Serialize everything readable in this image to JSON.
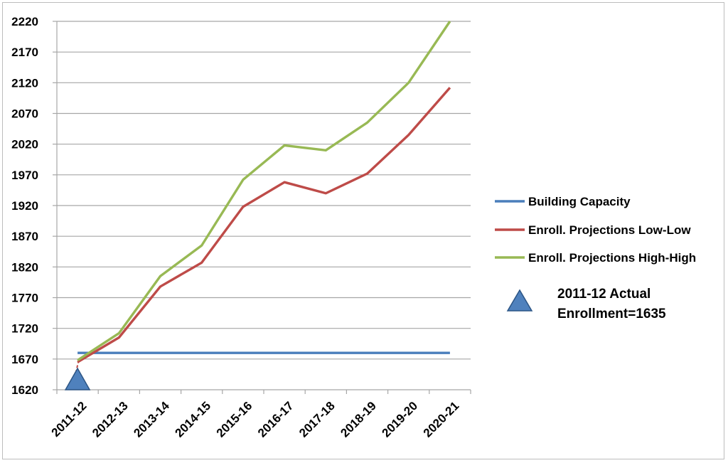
{
  "chart_data": {
    "type": "line",
    "title": "",
    "xlabel": "",
    "ylabel": "",
    "categories": [
      "2011-12",
      "2012-13",
      "2013-14",
      "2014-15",
      "2015-16",
      "2016-17",
      "2017-18",
      "2018-19",
      "2019-20",
      "2020-21"
    ],
    "y_ticks": [
      "1620",
      "1670",
      "1720",
      "1770",
      "1820",
      "1870",
      "1920",
      "1970",
      "2020",
      "2070",
      "2120",
      "2170",
      "2220"
    ],
    "ylim": [
      1620,
      2220
    ],
    "grid": true,
    "legend_position": "right",
    "series": [
      {
        "name": "Building Capacity",
        "color": "#4a7ebb",
        "values": [
          1680,
          1680,
          1680,
          1680,
          1680,
          1680,
          1680,
          1680,
          1680,
          1680
        ]
      },
      {
        "name": "Enroll. Projections Low-Low",
        "color": "#be4b48",
        "values": [
          1665,
          1705,
          1788,
          1827,
          1918,
          1958,
          1940,
          1972,
          2035,
          2112
        ]
      },
      {
        "name": "Enroll. Projections High-High",
        "color": "#98b954",
        "values": [
          1668,
          1712,
          1805,
          1855,
          1962,
          2018,
          2010,
          2055,
          2120,
          2220
        ]
      }
    ],
    "annotation": {
      "line1": "2011-12 Actual",
      "line2": "Enrollment=1635",
      "marker": "triangle",
      "marker_color": "#4f81bd",
      "category": "2011-12",
      "value": 1635
    }
  }
}
